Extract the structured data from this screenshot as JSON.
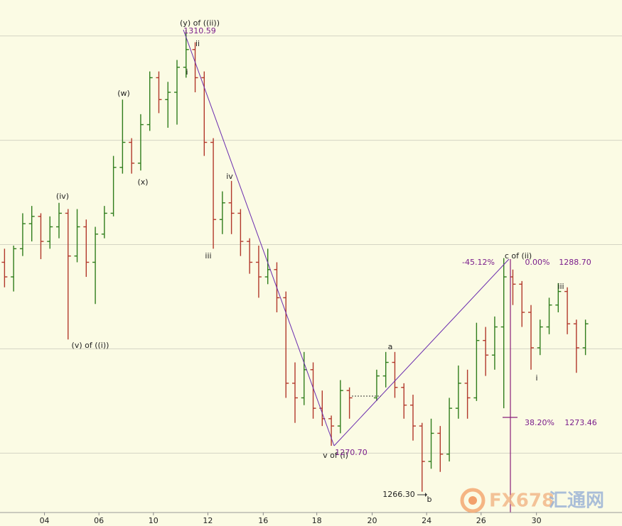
{
  "chart_data": {
    "type": "ohlc",
    "open": [
      1288.3,
      1286.9,
      1289.6,
      1292.0,
      1292.7,
      1290.3,
      1291.7,
      1293.0,
      1288.9,
      1291.7,
      1288.3,
      1291.0,
      1293.0,
      1297.4,
      1299.8,
      1297.8,
      1301.5,
      1306.0,
      1303.9,
      1304.6,
      1307.0,
      1308.7,
      1306.0,
      1299.8,
      1292.4,
      1294.0,
      1293.0,
      1290.3,
      1288.3,
      1286.9,
      1287.6,
      1284.9,
      1276.7,
      1275.3,
      1278.0,
      1274.3,
      1273.3,
      1272.6,
      1276.0,
      null,
      null,
      1275.3,
      1277.4,
      1278.7,
      1276.3,
      1274.6,
      1272.6,
      1269.2,
      1271.9,
      1269.9,
      1274.3,
      1276.7,
      1275.3,
      1280.8,
      1279.4,
      1282.1,
      1286.9,
      1286.2,
      1283.5,
      1280.1,
      1282.1,
      1284.2,
      1285.5,
      1282.4,
      1280.1
    ],
    "high": [
      1289.6,
      1289.9,
      1293.0,
      1293.7,
      1293.0,
      1292.7,
      1294.0,
      1293.4,
      1293.4,
      1292.4,
      1291.7,
      1293.7,
      1298.5,
      1303.9,
      1300.2,
      1302.5,
      1306.6,
      1306.6,
      1305.6,
      1307.7,
      1310.59,
      1309.4,
      1306.6,
      1300.2,
      1295.1,
      1296.1,
      1293.4,
      1290.6,
      1289.9,
      1289.6,
      1288.3,
      1285.5,
      1278.7,
      1279.7,
      1278.7,
      1276.0,
      1273.6,
      1277.0,
      1276.3,
      null,
      null,
      1278.0,
      1279.7,
      1279.7,
      1276.7,
      1275.6,
      1272.9,
      1273.3,
      1272.6,
      1275.3,
      1278.4,
      1278.0,
      1282.5,
      1282.1,
      1283.1,
      1288.7,
      1287.6,
      1286.5,
      1284.2,
      1282.8,
      1284.9,
      1286.3,
      1285.9,
      1282.8,
      1282.8
    ],
    "low": [
      1285.9,
      1285.5,
      1288.9,
      1290.3,
      1288.6,
      1289.6,
      1290.6,
      1280.9,
      1288.3,
      1286.9,
      1284.3,
      1290.6,
      1292.7,
      1296.8,
      1296.8,
      1297.1,
      1300.9,
      1302.6,
      1301.2,
      1301.5,
      1306.0,
      1304.6,
      1298.5,
      1289.6,
      1291.0,
      1291.0,
      1288.9,
      1287.2,
      1284.9,
      1286.2,
      1283.5,
      1275.3,
      1272.9,
      1274.6,
      1273.3,
      1272.6,
      1270.7,
      1271.9,
      1273.3,
      null,
      null,
      1275.0,
      1276.3,
      1275.3,
      1273.3,
      1271.2,
      1266.3,
      1268.5,
      1268.2,
      1269.2,
      1273.3,
      1273.3,
      1275.0,
      1277.4,
      1278.0,
      1274.3,
      1284.2,
      1282.1,
      1278.0,
      1279.4,
      1281.4,
      1283.5,
      1281.4,
      1277.7,
      1279.4
    ],
    "close": [
      1286.9,
      1289.6,
      1292.0,
      1292.7,
      1290.3,
      1291.7,
      1293.0,
      1288.9,
      1291.7,
      1288.3,
      1291.0,
      1293.0,
      1297.4,
      1299.8,
      1297.8,
      1301.5,
      1306.0,
      1303.9,
      1304.6,
      1307.0,
      1308.7,
      1306.0,
      1299.8,
      1292.4,
      1294.0,
      1293.0,
      1290.3,
      1288.3,
      1286.9,
      1287.6,
      1284.9,
      1276.7,
      1275.3,
      1278.0,
      1274.3,
      1273.3,
      1272.6,
      1276.0,
      1275.3,
      null,
      null,
      1277.4,
      1278.7,
      1276.3,
      1274.6,
      1272.6,
      1269.2,
      1271.9,
      1269.9,
      1274.3,
      1276.7,
      1275.3,
      1280.8,
      1279.4,
      1282.1,
      1286.9,
      1286.2,
      1283.5,
      1280.1,
      1282.1,
      1284.2,
      1285.5,
      1282.4,
      1280.1,
      1282.4
    ],
    "up_color": "#2f7d1c",
    "down_color": "#b2382b",
    "xlim": [
      -0.5,
      64.5
    ],
    "xticks": [
      {
        "value": 4.4,
        "label": "04"
      },
      {
        "value": 10.4,
        "label": "06"
      },
      {
        "value": 16.4,
        "label": "10"
      },
      {
        "value": 22.4,
        "label": "12"
      },
      {
        "value": 28.5,
        "label": "16"
      },
      {
        "value": 34.4,
        "label": "18"
      },
      {
        "value": 40.5,
        "label": "20"
      },
      {
        "value": 46.5,
        "label": "24"
      },
      {
        "value": 52.5,
        "label": "26"
      },
      {
        "value": 58.6,
        "label": "30"
      }
    ],
    "ylim": [
      1264.44,
      1313.45
    ],
    "yticks": [
      1270,
      1280,
      1290,
      1300,
      1310
    ],
    "grid": true,
    "annotations": [
      "(y) of ((ii))",
      "1310.59",
      "ii",
      "i",
      "(w)",
      "(x)",
      "(iv)",
      "(v) of ((i))",
      "iv",
      "iii",
      "a",
      "v of (i)",
      "1270.70",
      "1266.30",
      "b",
      "c of (ii)",
      "-45.12%",
      "0.00%",
      "1288.70",
      "38.20%",
      "1273.46",
      "iii",
      "i"
    ],
    "watermark": "FX678",
    "watermark_cn": "汇通网"
  }
}
